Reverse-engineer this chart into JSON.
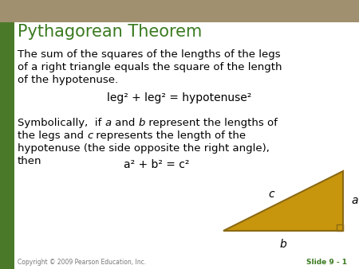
{
  "title": "Pythagorean Theorem",
  "title_color": "#3a7a20",
  "title_fontsize": 15,
  "bg_color": "#ffffff",
  "border_left_color": "#4a7a29",
  "body_text_1_line1": "The sum of the squares of the lengths of the legs",
  "body_text_1_line2": "of a right triangle equals the square of the length",
  "body_text_1_line3": "of the hypotenuse.",
  "formula_1": "leg² + leg² = hypotenuse²",
  "sym_line1_pre": "Symbolically,  if ",
  "sym_line1_a": "a",
  "sym_line1_mid": " and ",
  "sym_line1_b": "b",
  "sym_line1_post": " represent the lengths of",
  "sym_line2_pre": "the legs and ",
  "sym_line2_c": "c",
  "sym_line2_post": " represents the length of the",
  "sym_line3": "hypotenuse (the side opposite the right angle),",
  "sym_line4": "then",
  "formula_2_pre": "a",
  "formula_2_mid1": "² + b",
  "formula_2_mid2": "² = c",
  "formula_2_end": "²",
  "copyright": "Copyright © 2009 Pearson Education, Inc.",
  "slide_label": "Slide 9 - 1",
  "slide_label_color": "#3a7a20",
  "triangle_color": "#c8960c",
  "triangle_edge_color": "#8B6914",
  "label_a": "a",
  "label_b": "b",
  "label_c": "c",
  "text_color": "#000000",
  "body_fontsize": 9.5,
  "formula_fontsize": 10,
  "top_strip_color": "#a09070"
}
